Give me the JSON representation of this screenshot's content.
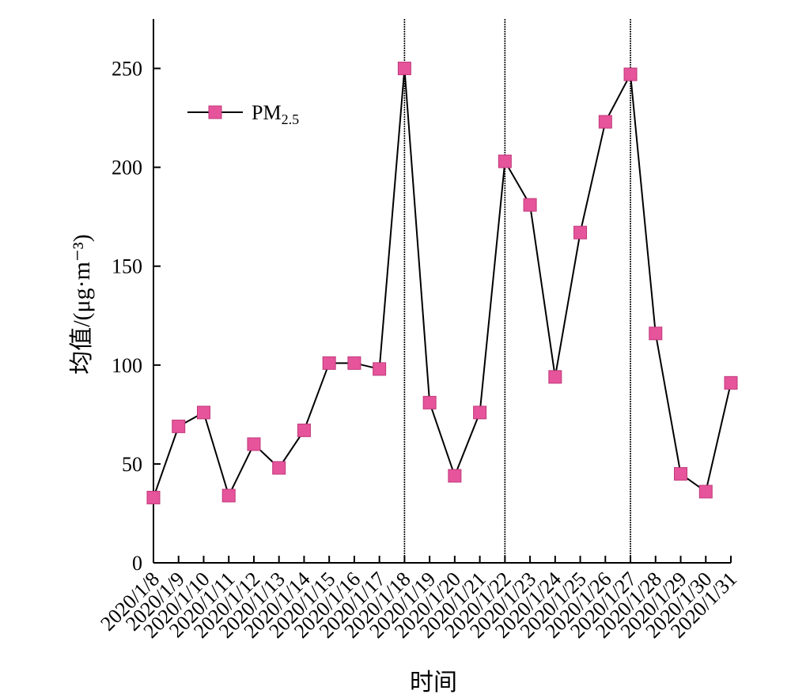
{
  "chart_data": {
    "type": "line",
    "title": "",
    "xlabel": "时间",
    "ylabel": "均值/(μg·m⁻³)",
    "ylim": [
      0,
      275
    ],
    "yticks": [
      0,
      50,
      100,
      150,
      200,
      250
    ],
    "categories": [
      "2020/1/8",
      "2020/1/9",
      "2020/1/10",
      "2020/1/11",
      "2020/1/12",
      "2020/1/13",
      "2020/1/14",
      "2020/1/15",
      "2020/1/16",
      "2020/1/17",
      "2020/1/18",
      "2020/1/19",
      "2020/1/20",
      "2020/1/21",
      "2020/1/22",
      "2020/1/23",
      "2020/1/24",
      "2020/1/25",
      "2020/1/26",
      "2020/1/27",
      "2020/1/28",
      "2020/1/29",
      "2020/1/30",
      "2020/1/31"
    ],
    "series": [
      {
        "name_main": "PM",
        "name_sub": "2.5",
        "color": "#e6549b",
        "line_color": "#000000",
        "marker": "square",
        "values": [
          33,
          69,
          76,
          34,
          60,
          48,
          67,
          101,
          101,
          98,
          250,
          81,
          44,
          76,
          203,
          181,
          94,
          167,
          223,
          247,
          116,
          45,
          36,
          91
        ]
      }
    ],
    "vertical_markers": [
      "2020/1/18",
      "2020/1/22",
      "2020/1/27"
    ],
    "legend_placement": "top-left",
    "grid": false
  }
}
